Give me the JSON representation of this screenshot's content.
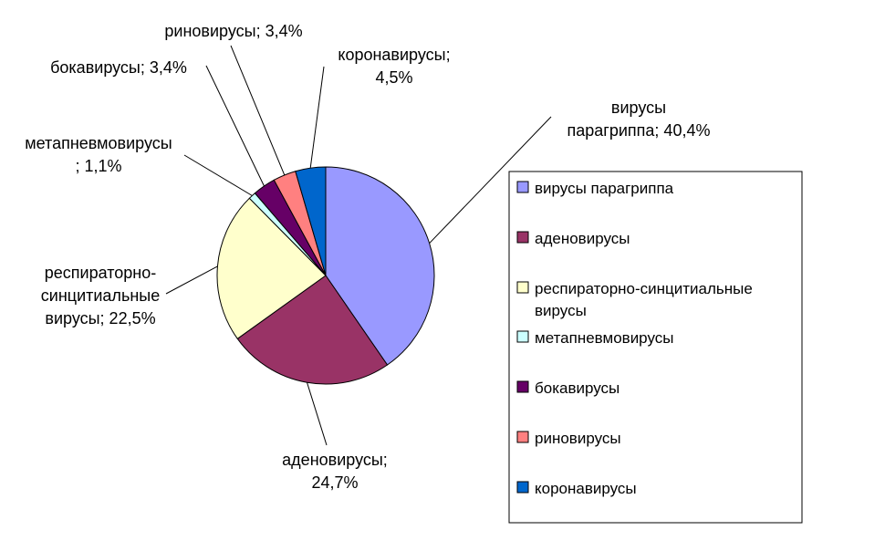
{
  "chart_data": {
    "type": "pie",
    "title": "",
    "legend_position": "right",
    "slices": [
      {
        "name": "вирусы парагриппа",
        "value": 40.4,
        "color": "#9999FF",
        "label_lines": [
          "вирусы",
          "парагриппа; 40,4%"
        ]
      },
      {
        "name": "аденовирусы",
        "value": 24.7,
        "color": "#993366",
        "label_lines": [
          "аденовирусы;",
          "24,7%"
        ]
      },
      {
        "name": "респираторно-синцитиальные вирусы",
        "value": 22.5,
        "color": "#FFFFCC",
        "label_lines": [
          "респираторно-",
          "синцитиальные",
          "вирусы; 22,5%"
        ]
      },
      {
        "name": "метапневмовирусы",
        "value": 1.1,
        "color": "#CCFFFF",
        "label_lines": [
          "метапневмовирусы",
          "; 1,1%"
        ]
      },
      {
        "name": "бокавирусы",
        "value": 3.4,
        "color": "#660066",
        "label_lines": [
          "бокавирусы; 3,4%"
        ]
      },
      {
        "name": "риновирусы",
        "value": 3.4,
        "color": "#FF8080",
        "label_lines": [
          "риновирусы; 3,4%"
        ]
      },
      {
        "name": "коронавирусы",
        "value": 4.5,
        "color": "#0066CC",
        "label_lines": [
          "коронавирусы;",
          "4,5%"
        ]
      }
    ],
    "legend": [
      {
        "lines": [
          "вирусы парагриппа"
        ]
      },
      {
        "lines": [
          "аденовирусы"
        ]
      },
      {
        "lines": [
          "респираторно-синцитиальные",
          "вирусы"
        ]
      },
      {
        "lines": [
          "метапневмовирусы"
        ]
      },
      {
        "lines": [
          "бокавирусы"
        ]
      },
      {
        "lines": [
          "риновирусы"
        ]
      },
      {
        "lines": [
          "коронавирусы"
        ]
      }
    ]
  }
}
